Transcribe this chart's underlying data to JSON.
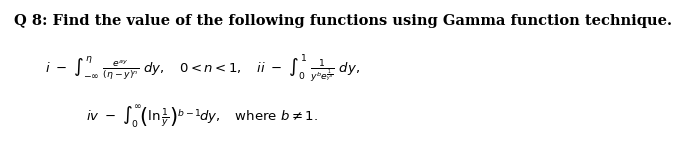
{
  "title": "Q 8: Find the value of the following functions using Gamma function technique.",
  "bg_color": "#ffffff",
  "text_color": "#000000",
  "title_fontsize": 10.5,
  "body_fontsize": 9.5
}
